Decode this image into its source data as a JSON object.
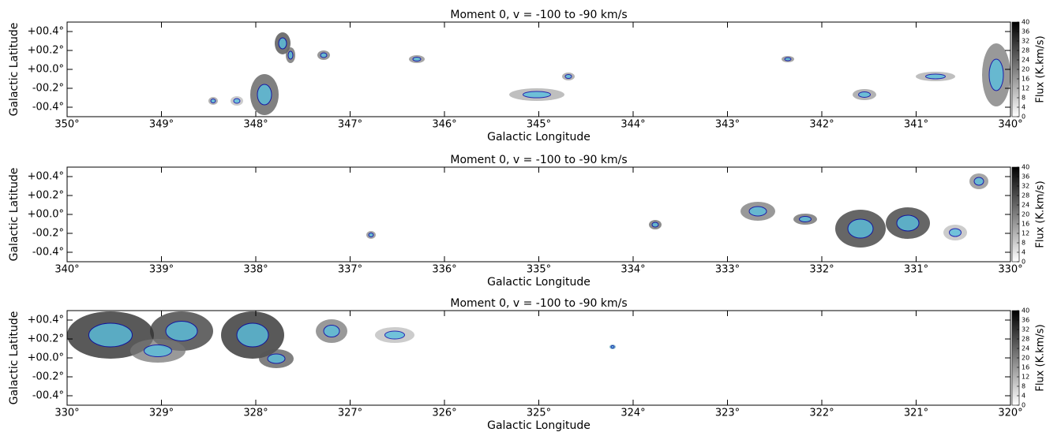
{
  "chart_data": [
    {
      "type": "image",
      "title": "Moment 0, v = -100 to -90 km/s",
      "xlabel": "Galactic Longitude",
      "ylabel": "Galactic Latitude",
      "xlim": [
        350,
        340
      ],
      "xticks": [
        {
          "value": 350,
          "label": "350°"
        },
        {
          "value": 349,
          "label": "349°"
        },
        {
          "value": 348,
          "label": "348°"
        },
        {
          "value": 347,
          "label": "347°"
        },
        {
          "value": 346,
          "label": "346°"
        },
        {
          "value": 345,
          "label": "345°"
        },
        {
          "value": 344,
          "label": "344°"
        },
        {
          "value": 343,
          "label": "343°"
        },
        {
          "value": 342,
          "label": "342°"
        },
        {
          "value": 341,
          "label": "341°"
        },
        {
          "value": 340,
          "label": "340°"
        }
      ],
      "ylim": [
        -0.5,
        0.5
      ],
      "yticks": [
        {
          "value": 0.4,
          "label": "+00.4°"
        },
        {
          "value": 0.2,
          "label": "+00.2°"
        },
        {
          "value": 0.0,
          "label": "+00.0°"
        },
        {
          "value": -0.2,
          "label": "-00.2°"
        },
        {
          "value": -0.4,
          "label": "-00.4°"
        }
      ],
      "colorbar": {
        "label": "Flux (K.km/s)",
        "lim": [
          0,
          40
        ],
        "ticks": [
          0,
          4,
          8,
          12,
          16,
          20,
          24,
          28,
          32,
          36,
          40
        ]
      }
    },
    {
      "type": "image",
      "title": "Moment 0, v = -100 to -90 km/s",
      "xlabel": "Galactic Longitude",
      "ylabel": "Galactic Latitude",
      "xlim": [
        340,
        330
      ],
      "xticks": [
        {
          "value": 340,
          "label": "340°"
        },
        {
          "value": 339,
          "label": "339°"
        },
        {
          "value": 338,
          "label": "338°"
        },
        {
          "value": 337,
          "label": "337°"
        },
        {
          "value": 336,
          "label": "336°"
        },
        {
          "value": 335,
          "label": "335°"
        },
        {
          "value": 334,
          "label": "334°"
        },
        {
          "value": 333,
          "label": "333°"
        },
        {
          "value": 332,
          "label": "332°"
        },
        {
          "value": 331,
          "label": "331°"
        },
        {
          "value": 330,
          "label": "330°"
        }
      ],
      "ylim": [
        -0.5,
        0.5
      ],
      "yticks": [
        {
          "value": 0.4,
          "label": "+00.4°"
        },
        {
          "value": 0.2,
          "label": "+00.2°"
        },
        {
          "value": 0.0,
          "label": "+00.0°"
        },
        {
          "value": -0.2,
          "label": "-00.2°"
        },
        {
          "value": -0.4,
          "label": "-00.4°"
        }
      ],
      "colorbar": {
        "label": "Flux (K.km/s)",
        "lim": [
          0,
          40
        ],
        "ticks": [
          0,
          4,
          8,
          12,
          16,
          20,
          24,
          28,
          32,
          36,
          40
        ]
      }
    },
    {
      "type": "image",
      "title": "Moment 0, v = -100 to -90 km/s",
      "xlabel": "Galactic Longitude",
      "ylabel": "Galactic Latitude",
      "xlim": [
        330,
        320
      ],
      "xticks": [
        {
          "value": 330,
          "label": "330°"
        },
        {
          "value": 329,
          "label": "329°"
        },
        {
          "value": 328,
          "label": "328°"
        },
        {
          "value": 327,
          "label": "327°"
        },
        {
          "value": 326,
          "label": "326°"
        },
        {
          "value": 325,
          "label": "325°"
        },
        {
          "value": 324,
          "label": "324°"
        },
        {
          "value": 323,
          "label": "323°"
        },
        {
          "value": 322,
          "label": "322°"
        },
        {
          "value": 321,
          "label": "321°"
        },
        {
          "value": 320,
          "label": "320°"
        }
      ],
      "ylim": [
        -0.5,
        0.5
      ],
      "yticks": [
        {
          "value": 0.4,
          "label": "+00.4°"
        },
        {
          "value": 0.2,
          "label": "+00.2°"
        },
        {
          "value": 0.0,
          "label": "+00.0°"
        },
        {
          "value": -0.2,
          "label": "-00.2°"
        },
        {
          "value": -0.4,
          "label": "-00.4°"
        }
      ],
      "colorbar": {
        "label": "Flux (K.km/s)",
        "lim": [
          0,
          40
        ],
        "ticks": [
          0,
          4,
          8,
          12,
          16,
          20,
          24,
          28,
          32,
          36,
          40
        ]
      }
    }
  ]
}
